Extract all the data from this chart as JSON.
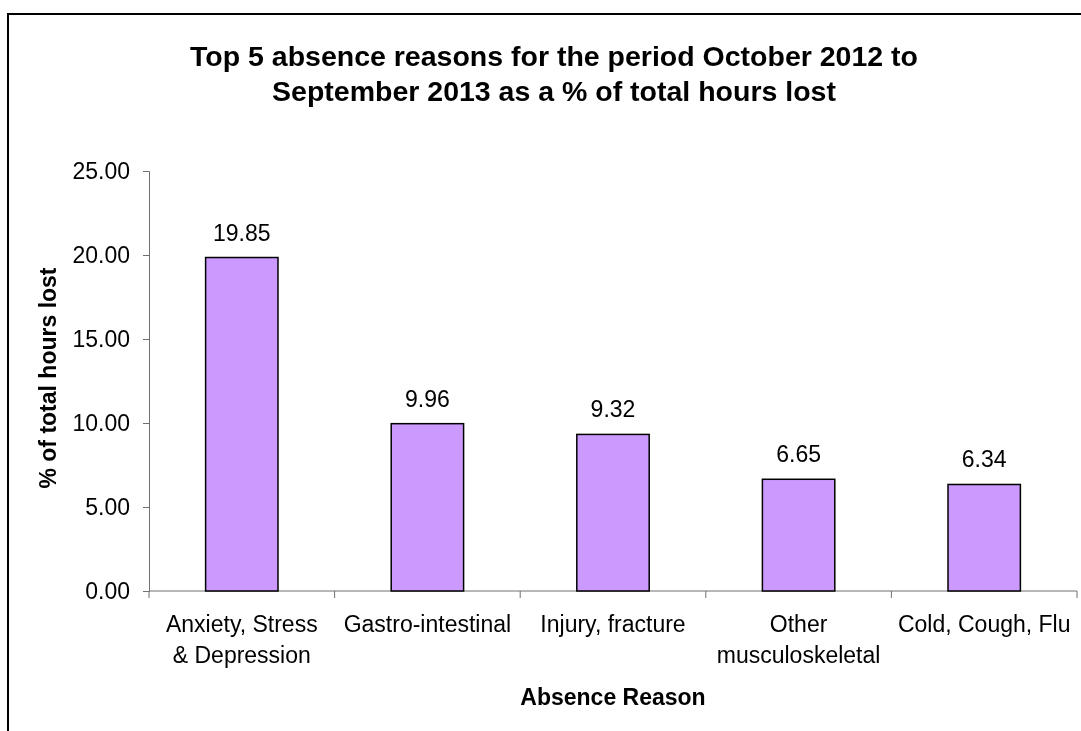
{
  "chart_data": {
    "type": "bar",
    "title": "Top 5 absence reasons for the period October 2012 to September 2013 as a % of total hours lost",
    "xlabel": "Absence Reason",
    "ylabel": "% of total hours lost",
    "categories": [
      "Anxiety, Stress & Depression",
      "Gastro-intestinal",
      "Injury, fracture",
      "Other musculoskeletal",
      "Cold, Cough, Flu"
    ],
    "values": [
      19.85,
      9.96,
      9.32,
      6.65,
      6.34
    ],
    "color": "#cc99ff",
    "data_labels": true,
    "ylim": [
      0,
      25
    ],
    "yticks": [
      {
        "value": 0,
        "label": "0.00"
      },
      {
        "value": 5,
        "label": "5.00"
      },
      {
        "value": 10,
        "label": "10.00"
      },
      {
        "value": 15,
        "label": "15.00"
      },
      {
        "value": 20,
        "label": "20.00"
      },
      {
        "value": 25,
        "label": "25.00"
      }
    ]
  }
}
